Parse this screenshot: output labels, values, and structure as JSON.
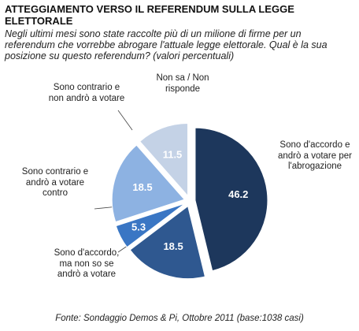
{
  "chart_data": {
    "type": "pie",
    "title": "ATTEGGIAMENTO VERSO IL REFERENDUM SULLA LEGGE ELETTORALE",
    "subtitle": "Negli ultimi mesi sono state raccolte più di un milione di firme per un referendum che vorrebbe abrogare l'attuale legge elettorale. Qual è la sua posizione su questo referendum? (valori percentuali)",
    "categories": [
      "Sono d'accordo e andrò a votare per l'abrogazione",
      "Sono d'accordo, ma non so se andrò a votare",
      "Sono contrario e andrò a votare contro",
      "Sono contrario e non andrò a votare",
      "Non sa / Non risponde"
    ],
    "values": [
      46.2,
      18.5,
      5.3,
      18.5,
      11.5
    ],
    "colors": [
      "#1d375c",
      "#2f5890",
      "#3a76c4",
      "#8db2e2",
      "#c4d2e6"
    ],
    "source": "Fonte: Sondaggio Demos & Pi, Ottobre 2011 (base:1038 casi)"
  }
}
